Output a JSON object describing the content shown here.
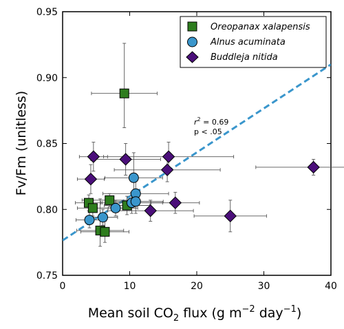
{
  "chart_data": {
    "type": "scatter",
    "title": "",
    "xlabel": {
      "pre": "Mean soil CO",
      "sub": "2",
      "mid": " flux (g m",
      "sup1": "−2",
      "mid2": " day",
      "sup2": "−1",
      "post": ")"
    },
    "ylabel": "Fv/Fm (unitless)",
    "xlim": [
      0,
      40
    ],
    "ylim": [
      0.75,
      0.95
    ],
    "xticks": [
      0,
      10,
      20,
      30,
      40
    ],
    "yticks": [
      0.75,
      0.8,
      0.85,
      0.9,
      0.95
    ],
    "xtick_labels": [
      "0",
      "10",
      "20",
      "30",
      "40"
    ],
    "ytick_labels": [
      "0.75",
      "0.80",
      "0.85",
      "0.90",
      "0.95"
    ],
    "grid": false,
    "legend_position": "top-right",
    "series": [
      {
        "name": "Oreopanax xalapensis",
        "marker": "square",
        "color": "#2e7d1e",
        "points": [
          {
            "x": 9.2,
            "y": 0.888,
            "xerr": [
              4.9,
              4.9
            ],
            "yerr": [
              0.026,
              0.038
            ]
          },
          {
            "x": 3.9,
            "y": 0.805,
            "xerr": [
              2.0,
              2.0
            ],
            "yerr": [
              0.006,
              0.006
            ]
          },
          {
            "x": 4.5,
            "y": 0.801,
            "xerr": [
              2.3,
              2.3
            ],
            "yerr": [
              0.006,
              0.006
            ]
          },
          {
            "x": 7.0,
            "y": 0.807,
            "xerr": [
              4.1,
              4.1
            ],
            "yerr": [
              0.005,
              0.005
            ]
          },
          {
            "x": 5.6,
            "y": 0.784,
            "xerr": [
              3.5,
              3.5
            ],
            "yerr": [
              0.012,
              0.024
            ]
          },
          {
            "x": 6.3,
            "y": 0.783,
            "xerr": [
              3.6,
              3.6
            ],
            "yerr": [
              0.008,
              0.008
            ]
          },
          {
            "x": 9.6,
            "y": 0.803,
            "xerr": [
              3.4,
              3.4
            ],
            "yerr": [
              0.007,
              0.007
            ]
          }
        ]
      },
      {
        "name": "Alnus acuminata",
        "marker": "circle",
        "color": "#3a96cc",
        "points": [
          {
            "x": 4.0,
            "y": 0.792,
            "xerr": [
              2.0,
              2.0
            ],
            "yerr": [
              0.006,
              0.006
            ]
          },
          {
            "x": 6.0,
            "y": 0.794,
            "xerr": [
              2.2,
              2.2
            ],
            "yerr": [
              0.006,
              0.006
            ]
          },
          {
            "x": 7.9,
            "y": 0.801,
            "xerr": [
              3.3,
              3.3
            ],
            "yerr": [
              0.006,
              0.006
            ]
          },
          {
            "x": 10.6,
            "y": 0.824,
            "xerr": [
              4.3,
              4.3
            ],
            "yerr": [
              0.019,
              0.019
            ]
          },
          {
            "x": 10.3,
            "y": 0.805,
            "xerr": [
              4.6,
              4.6
            ],
            "yerr": [
              0.008,
              0.008
            ]
          },
          {
            "x": 10.9,
            "y": 0.812,
            "xerr": [
              4.9,
              4.9
            ],
            "yerr": [
              0.011,
              0.011
            ]
          },
          {
            "x": 10.9,
            "y": 0.806,
            "xerr": [
              4.1,
              4.1
            ],
            "yerr": [
              0.009,
              0.009
            ]
          }
        ]
      },
      {
        "name": "Buddleja nitida",
        "marker": "diamond",
        "color": "#4b0f7a",
        "points": [
          {
            "x": 4.6,
            "y": 0.84,
            "xerr": [
              2.1,
              2.1
            ],
            "yerr": [
              0.011,
              0.011
            ]
          },
          {
            "x": 9.4,
            "y": 0.838,
            "xerr": [
              5.2,
              5.2
            ],
            "yerr": [
              0.012,
              0.012
            ]
          },
          {
            "x": 4.2,
            "y": 0.823,
            "xerr": [
              2.0,
              2.0
            ],
            "yerr": [
              0.011,
              0.011
            ]
          },
          {
            "x": 15.8,
            "y": 0.84,
            "xerr": [
              9.7,
              9.7
            ],
            "yerr": [
              0.011,
              0.011
            ]
          },
          {
            "x": 15.6,
            "y": 0.83,
            "xerr": [
              7.9,
              7.9
            ],
            "yerr": [
              0.009,
              0.009
            ]
          },
          {
            "x": 13.1,
            "y": 0.799,
            "xerr": [
              6.4,
              6.4
            ],
            "yerr": [
              0.008,
              0.008
            ]
          },
          {
            "x": 16.8,
            "y": 0.805,
            "xerr": [
              3.6,
              3.6
            ],
            "yerr": [
              0.008,
              0.008
            ]
          },
          {
            "x": 25.0,
            "y": 0.795,
            "xerr": [
              5.4,
              5.4
            ],
            "yerr": [
              0.012,
              0.012
            ]
          },
          {
            "x": 37.4,
            "y": 0.832,
            "xerr": [
              8.6,
              8.6
            ],
            "yerr": [
              0.006,
              0.006
            ]
          }
        ]
      }
    ],
    "fit_line": {
      "x": [
        0,
        40
      ],
      "y": [
        0.7765,
        0.91
      ],
      "color": "#3a96cc",
      "style": "dashed"
    },
    "annotation": {
      "line1_pre": "r",
      "line1_sup": "2",
      "line1_post": " = 0.69",
      "line2": "p < .05"
    }
  }
}
